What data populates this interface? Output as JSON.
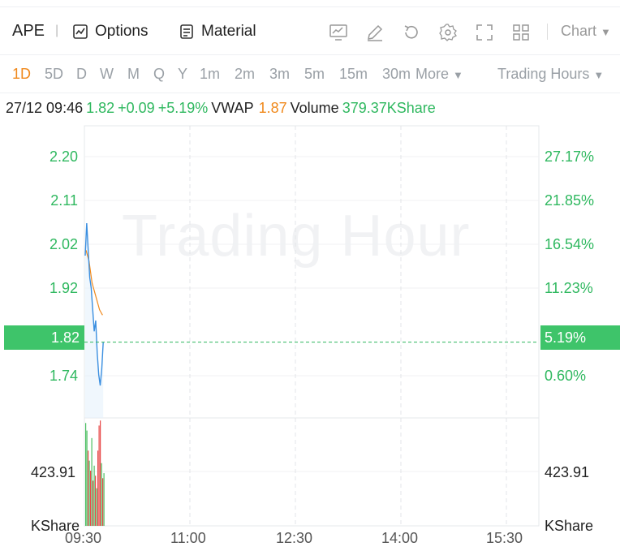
{
  "header": {
    "symbol": "APE",
    "separator": "|",
    "options_label": "Options",
    "material_label": "Material",
    "chart_label": "Chart",
    "icons": [
      "chart-monitor-icon",
      "draw-pen-icon",
      "refresh-icon",
      "gear-icon",
      "fullscreen-icon",
      "grid-layout-icon"
    ]
  },
  "timeframes": {
    "items": [
      "1D",
      "5D",
      "D",
      "W",
      "M",
      "Q",
      "Y",
      "1m",
      "2m",
      "3m",
      "5m",
      "15m",
      "30m",
      "More"
    ],
    "active": "1D",
    "trading_hours_label": "Trading Hours"
  },
  "quote": {
    "datetime": "27/12 09:46",
    "price": "1.82",
    "change": "+0.09",
    "change_pct": "+5.19%",
    "vwap_label": "VWAP",
    "vwap_value": "1.87",
    "volume_label": "Volume",
    "volume_value": "379.37KShare"
  },
  "axis": {
    "price_labels": [
      "2.20",
      "2.11",
      "2.02",
      "1.92",
      "1.74"
    ],
    "pct_labels": [
      "27.17%",
      "21.85%",
      "16.54%",
      "11.23%",
      "0.60%"
    ],
    "current_price": "1.82",
    "current_pct": "5.19%",
    "volume_label_left": "423.91",
    "volume_label_right": "423.91",
    "volume_unit_left": "KShare",
    "volume_unit_right": "KShare",
    "times": [
      "09:30",
      "11:00",
      "12:30",
      "14:00",
      "15:30"
    ]
  },
  "watermark": "Trading Hour",
  "colors": {
    "up": "#2fb85f",
    "accent": "#f0891c",
    "price_line": "#3b8fe0",
    "vwap_line": "#f0891c",
    "vol_up": "#e84a4a",
    "vol_down": "#4cbf62"
  },
  "chart_data": {
    "type": "line",
    "series": [
      {
        "values": [
          1.98,
          2.04,
          1.99,
          1.94,
          1.92,
          1.88,
          1.84,
          1.86,
          1.8,
          1.76,
          1.74,
          1.77,
          1.82
        ]
      },
      {
        "values": [
          1.99,
          1.98,
          1.97,
          1.95,
          1.93,
          1.92,
          1.91,
          1.9,
          1.89,
          1.88,
          1.875,
          1.87
        ]
      }
    ],
    "volume": [
      {
        "v": 410,
        "up": false
      },
      {
        "v": 380,
        "up": false
      },
      {
        "v": 300,
        "up": true
      },
      {
        "v": 260,
        "up": false
      },
      {
        "v": 220,
        "up": true
      },
      {
        "v": 350,
        "up": false
      },
      {
        "v": 180,
        "up": true
      },
      {
        "v": 240,
        "up": false
      },
      {
        "v": 200,
        "up": true
      },
      {
        "v": 150,
        "up": false
      },
      {
        "v": 300,
        "up": true
      },
      {
        "v": 400,
        "up": true
      },
      {
        "v": 420,
        "up": true
      },
      {
        "v": 250,
        "up": false
      },
      {
        "v": 190,
        "up": true
      },
      {
        "v": 210,
        "up": false
      }
    ],
    "ylim": [
      1.68,
      2.22
    ],
    "vol_max": 423.91
  }
}
